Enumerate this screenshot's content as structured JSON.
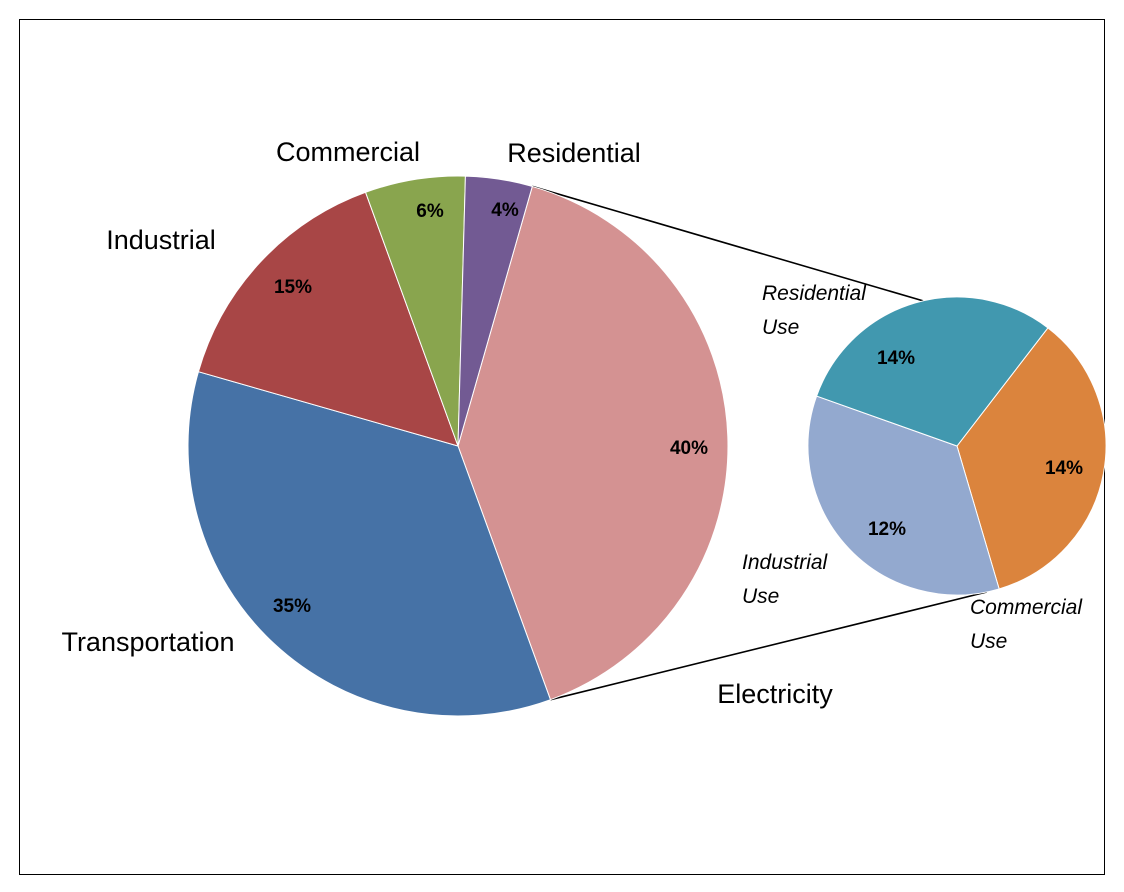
{
  "chart_data": {
    "type": "pie",
    "variant": "pie-of-pie",
    "main": {
      "slices": [
        {
          "label": "Electricity",
          "value": 40,
          "value_label": "40%",
          "color": "#D49292"
        },
        {
          "label": "Transportation",
          "value": 35,
          "value_label": "35%",
          "color": "#4672A6"
        },
        {
          "label": "Industrial",
          "value": 15,
          "value_label": "15%",
          "color": "#A84646"
        },
        {
          "label": "Commercial",
          "value": 6,
          "value_label": "6%",
          "color": "#89A54E"
        },
        {
          "label": "Residential",
          "value": 4,
          "value_label": "4%",
          "color": "#725A93"
        }
      ],
      "exploded_slice": "Electricity"
    },
    "secondary": {
      "parent": "Electricity",
      "slices": [
        {
          "label": "Residential Use",
          "label_lines": [
            "Residential",
            "Use"
          ],
          "value": 14,
          "value_label": "14%",
          "color": "#DB843D"
        },
        {
          "label": "Commercial Use",
          "label_lines": [
            "Commercial",
            "Use"
          ],
          "value": 14,
          "value_label": "14%",
          "color": "#93A9CF"
        },
        {
          "label": "Industrial Use",
          "label_lines": [
            "Industrial",
            "Use"
          ],
          "value": 12,
          "value_label": "12%",
          "color": "#4198AF"
        }
      ]
    },
    "legend": "none",
    "data_labels": "inside"
  }
}
